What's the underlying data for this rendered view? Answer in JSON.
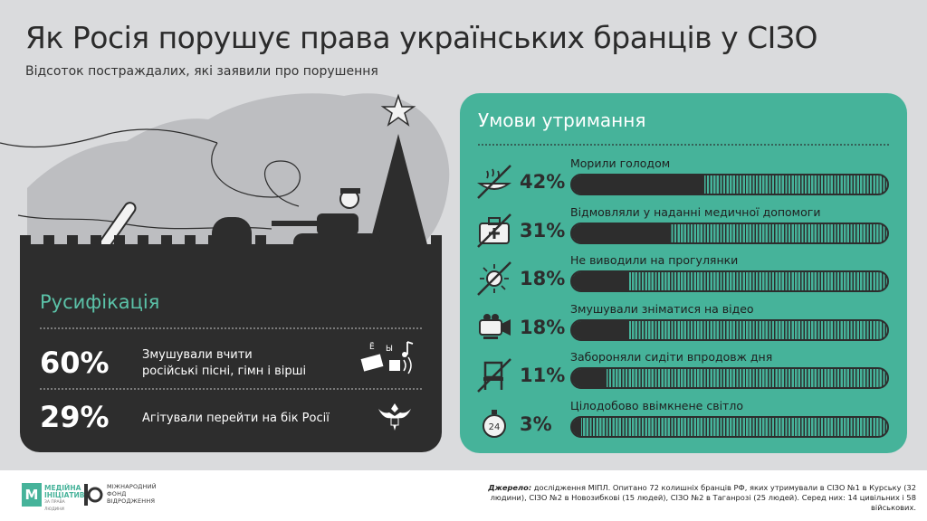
{
  "title": "Як Росія порушує права українських бранців у СІЗО",
  "subtitle": "Відсоток постраждалих, які заявили про порушення",
  "russification": {
    "title": "Русифікація",
    "items": [
      {
        "pct": "60%",
        "text_line1": "Змушували вчити",
        "text_line2": "російські пісні, гімн і вірші",
        "icon": "singing-icon"
      },
      {
        "pct": "29%",
        "text_line1": "Агітували перейти на бік Росії",
        "text_line2": "",
        "icon": "russian-eagle-icon"
      }
    ],
    "icon_letters": [
      "Ё",
      "Ы"
    ]
  },
  "conditions": {
    "title": "Умови утримання"
  },
  "chart_data": {
    "type": "bar",
    "orientation": "horizontal",
    "title": "Умови утримання",
    "categories": [
      "Морили голодом",
      "Відмовляли у наданні медичної допомоги",
      "Не виводили на прогулянки",
      "Змушували зніматися на відео",
      "Забороняли сидіти впродовж дня",
      "Цілодобово ввімкнене світло"
    ],
    "values": [
      42,
      31,
      18,
      18,
      11,
      3
    ],
    "value_labels": [
      "42%",
      "31%",
      "18%",
      "18%",
      "11%",
      "3%"
    ],
    "icons": [
      "crossed-food-bowl-icon",
      "crossed-medkit-icon",
      "crossed-sun-icon",
      "video-camera-icon",
      "crossed-chair-icon",
      "stopwatch-24-icon"
    ],
    "xlim": [
      0,
      100
    ],
    "unit": "%",
    "colors": {
      "fill": "#2d2d2d",
      "panel": "#46b39a"
    }
  },
  "footer": {
    "logo1_mark": "М",
    "logo1_text": "МЕДІЙНА ІНІЦІАТИВА",
    "logo1_sub": "ЗА ПРАВА ЛЮДИНИ",
    "logo2_text": "МІЖНАРОДНИЙ ФОНД ВІДРОДЖЕННЯ",
    "source_label": "Джерело:",
    "source_text": "дослідження МІПЛ. Опитано 72 колишніх бранців РФ, яких утримували в СІЗО №1 в Курську (32 людини), СІЗО №2 в Новозибкові (15 людей), СІЗО №2 в Таганрозі (25 людей). Серед них: 14 цивільних і 58 військових."
  },
  "colors": {
    "background": "#dadbdd",
    "dark": "#2d2d2d",
    "accent": "#46b39a",
    "accent_text": "#5bc2a8"
  }
}
